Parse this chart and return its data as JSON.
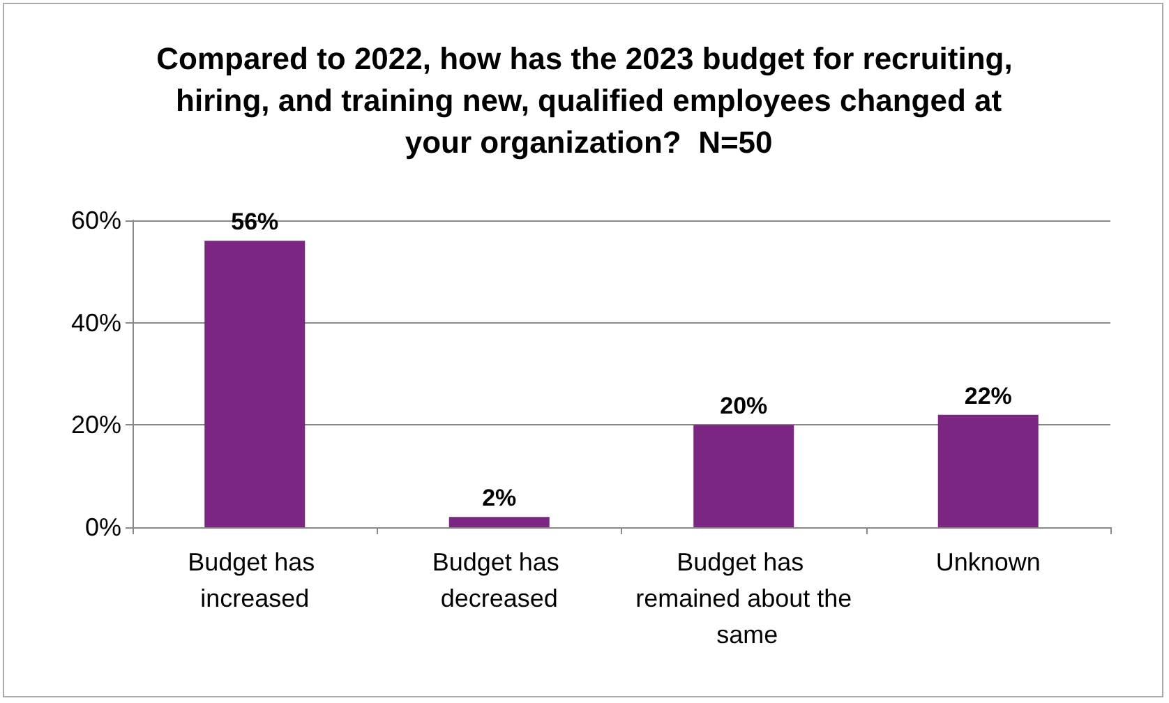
{
  "chart_data": {
    "type": "bar",
    "title": "Compared to 2022, how has the 2023 budget for recruiting, hiring, and training new, qualified employees changed at your organization?  N=50",
    "categories": [
      "Budget has increased",
      "Budget has decreased",
      "Budget has remained about the same",
      "Unknown"
    ],
    "values": [
      56,
      2,
      20,
      22
    ],
    "color": "#7b2683",
    "value_labels": [
      "56%",
      "2%",
      "20%",
      "22%"
    ],
    "ylim": [
      0,
      60
    ],
    "yticks": [
      {
        "value": 0,
        "label": "0%"
      },
      {
        "value": 20,
        "label": "20%"
      },
      {
        "value": 40,
        "label": "40%"
      },
      {
        "value": 60,
        "label": "60%"
      }
    ],
    "grid": "y",
    "legend": false
  }
}
